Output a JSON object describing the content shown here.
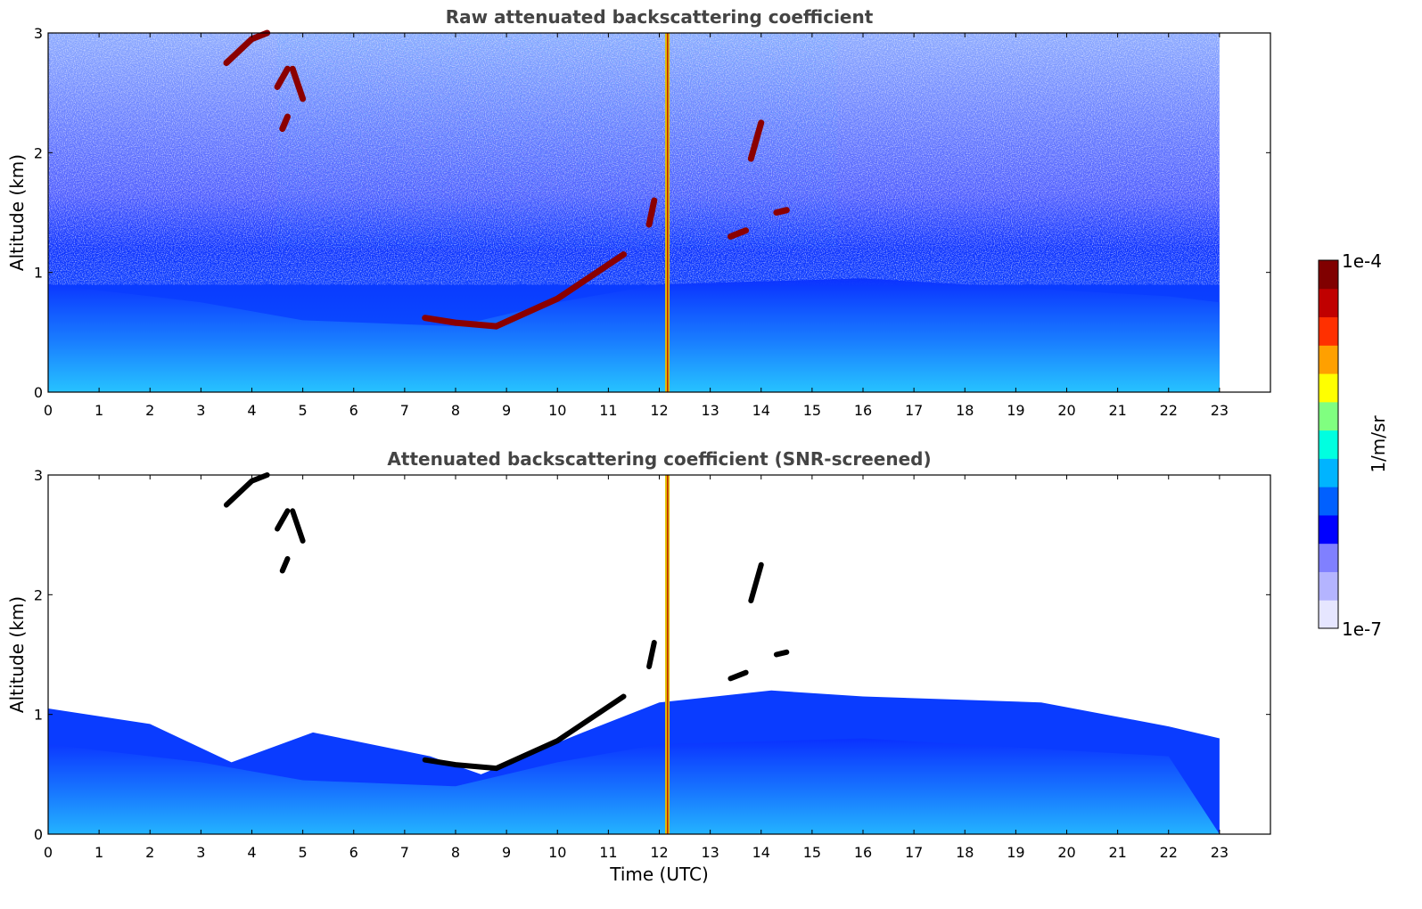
{
  "chart_data": [
    {
      "type": "heatmap",
      "title": "Raw attenuated backscattering coefficient",
      "xlabel": "",
      "ylabel": "Altitude (km)",
      "xlim": [
        0,
        24
      ],
      "ylim": [
        0,
        3
      ],
      "xticks": [
        "0",
        "1",
        "2",
        "3",
        "4",
        "5",
        "6",
        "7",
        "8",
        "9",
        "10",
        "11",
        "12",
        "13",
        "14",
        "15",
        "16",
        "17",
        "18",
        "19",
        "20",
        "21",
        "22",
        "23"
      ],
      "yticks": [
        "0",
        "1",
        "2",
        "3"
      ],
      "data_extent_hours": [
        0,
        23
      ],
      "features": {
        "aerosol_layer_top_km": [
          {
            "x": 0,
            "y": 0.9
          },
          {
            "x": 3,
            "y": 0.75
          },
          {
            "x": 5,
            "y": 0.6
          },
          {
            "x": 8,
            "y": 0.55
          },
          {
            "x": 10,
            "y": 0.75
          },
          {
            "x": 12,
            "y": 0.9
          },
          {
            "x": 16,
            "y": 0.95
          },
          {
            "x": 20,
            "y": 0.85
          },
          {
            "x": 22,
            "y": 0.8
          }
        ],
        "cloud_segments_km": [
          [
            {
              "x": 3.5,
              "y": 2.75
            },
            {
              "x": 4.0,
              "y": 2.95
            },
            {
              "x": 4.3,
              "y": 3.0
            }
          ],
          [
            {
              "x": 4.5,
              "y": 2.55
            },
            {
              "x": 4.7,
              "y": 2.7
            }
          ],
          [
            {
              "x": 4.6,
              "y": 2.2
            },
            {
              "x": 4.7,
              "y": 2.3
            }
          ],
          [
            {
              "x": 4.8,
              "y": 2.7
            },
            {
              "x": 5.0,
              "y": 2.45
            }
          ],
          [
            {
              "x": 7.4,
              "y": 0.62
            },
            {
              "x": 8.0,
              "y": 0.58
            },
            {
              "x": 8.8,
              "y": 0.55
            }
          ],
          [
            {
              "x": 8.8,
              "y": 0.55
            },
            {
              "x": 10.0,
              "y": 0.78
            },
            {
              "x": 11.3,
              "y": 1.15
            }
          ],
          [
            {
              "x": 11.8,
              "y": 1.4
            },
            {
              "x": 11.9,
              "y": 1.6
            }
          ],
          [
            {
              "x": 13.4,
              "y": 1.3
            },
            {
              "x": 13.7,
              "y": 1.35
            }
          ],
          [
            {
              "x": 13.8,
              "y": 1.95
            },
            {
              "x": 14.0,
              "y": 2.25
            }
          ],
          [
            {
              "x": 14.3,
              "y": 1.5
            },
            {
              "x": 14.5,
              "y": 1.52
            }
          ]
        ],
        "bright_column_hours": 12.15
      }
    },
    {
      "type": "heatmap",
      "title": "Attenuated backscattering coefficient (SNR-screened)",
      "xlabel": "Time (UTC)",
      "ylabel": "Altitude (km)",
      "xlim": [
        0,
        24
      ],
      "ylim": [
        0,
        3
      ],
      "xticks": [
        "0",
        "1",
        "2",
        "3",
        "4",
        "5",
        "6",
        "7",
        "8",
        "9",
        "10",
        "11",
        "12",
        "13",
        "14",
        "15",
        "16",
        "17",
        "18",
        "19",
        "20",
        "21",
        "22",
        "23"
      ],
      "yticks": [
        "0",
        "1",
        "2",
        "3"
      ],
      "data_extent_hours": [
        0,
        23
      ],
      "screened_top_km": [
        {
          "x": 0,
          "y": 1.05
        },
        {
          "x": 2,
          "y": 0.92
        },
        {
          "x": 3.6,
          "y": 0.6
        },
        {
          "x": 5.2,
          "y": 0.85
        },
        {
          "x": 7.5,
          "y": 0.65
        },
        {
          "x": 8.5,
          "y": 0.5
        },
        {
          "x": 10.5,
          "y": 0.85
        },
        {
          "x": 12,
          "y": 1.1
        },
        {
          "x": 14.2,
          "y": 1.2
        },
        {
          "x": 16,
          "y": 1.15
        },
        {
          "x": 19.5,
          "y": 1.1
        },
        {
          "x": 22,
          "y": 0.9
        },
        {
          "x": 23,
          "y": 0.8
        }
      ]
    }
  ],
  "colorbar": {
    "label": "1/m/sr",
    "max_label": "1e-4",
    "min_label": "1e-7",
    "colormap": [
      "#e6e6ff",
      "#b4b4ff",
      "#8080ff",
      "#0000ff",
      "#0060ff",
      "#00b4ff",
      "#00ffe0",
      "#80ff80",
      "#ffff00",
      "#ffa000",
      "#ff3000",
      "#c00000",
      "#800000"
    ]
  },
  "colors": {
    "background_blue": "#0030ff",
    "aerosol_light": "#30b0ff",
    "cloud_dark": "#8b0000",
    "screened_cloud": "#000000"
  }
}
